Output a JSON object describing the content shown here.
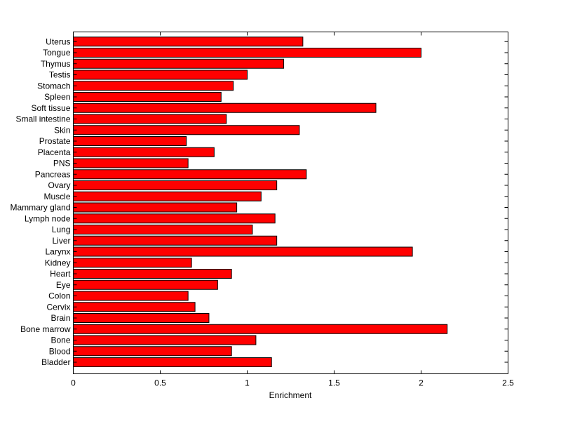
{
  "chart_data": {
    "type": "bar",
    "orientation": "horizontal",
    "title": "",
    "xlabel": "Enrichment",
    "ylabel": "",
    "xlim": [
      0,
      2.5
    ],
    "xticks": [
      0,
      0.5,
      1,
      1.5,
      2,
      2.5
    ],
    "xtick_labels": [
      "0",
      "0.5",
      "1",
      "1.5",
      "2",
      "2.5"
    ],
    "grid": false,
    "legend": "none",
    "bar_color": "#ff0000",
    "bar_edge_color": "#000000",
    "categories": [
      "Bladder",
      "Blood",
      "Bone",
      "Bone marrow",
      "Brain",
      "Cervix",
      "Colon",
      "Eye",
      "Heart",
      "Kidney",
      "Larynx",
      "Liver",
      "Lung",
      "Lymph node",
      "Mammary gland",
      "Muscle",
      "Ovary",
      "Pancreas",
      "PNS",
      "Placenta",
      "Prostate",
      "Skin",
      "Small intestine",
      "Soft tissue",
      "Spleen",
      "Stomach",
      "Testis",
      "Thymus",
      "Tongue",
      "Uterus"
    ],
    "values": [
      1.14,
      0.91,
      1.05,
      2.15,
      0.78,
      0.7,
      0.66,
      0.83,
      0.91,
      0.68,
      1.95,
      1.17,
      1.03,
      1.16,
      0.94,
      1.08,
      1.17,
      1.34,
      0.66,
      0.81,
      0.65,
      1.3,
      0.88,
      1.74,
      0.85,
      0.92,
      1.0,
      1.21,
      2.0,
      1.32
    ]
  }
}
